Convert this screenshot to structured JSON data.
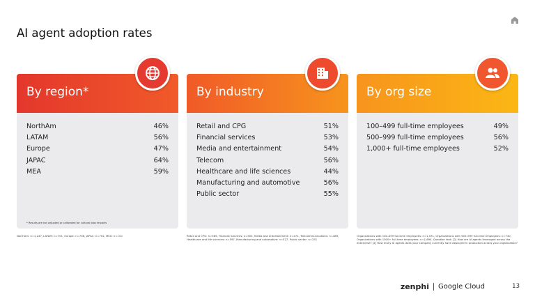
{
  "title": "AI agent adoption rates",
  "cards": [
    {
      "heading": "By region*",
      "rows": [
        {
          "label": "NorthAm",
          "value": "46%"
        },
        {
          "label": "LATAM",
          "value": "56%"
        },
        {
          "label": "Europe",
          "value": "47%"
        },
        {
          "label": "JAPAC",
          "value": "64%"
        },
        {
          "label": "MEA",
          "value": "59%"
        }
      ],
      "note": "* Results are not adjusted or calibrated for cultural bias impacts",
      "footnote": "NorthAm: n=1,247, LATAM: n=701, Europe: n=706, JAPAC: n=702, MEA: n=110"
    },
    {
      "heading": "By industry",
      "rows": [
        {
          "label": "Retail and CPG",
          "value": "51%"
        },
        {
          "label": "Financial services",
          "value": "53%"
        },
        {
          "label": "Media and entertainment",
          "value": "54%"
        },
        {
          "label": "Telecom",
          "value": "56%"
        },
        {
          "label": "Healthcare and life sciences",
          "value": "44%"
        },
        {
          "label": "Manufacturing and automotive",
          "value": "56%"
        },
        {
          "label": "Public sector",
          "value": "55%"
        }
      ],
      "footnote": "Retail and CPG: n=589, Financial services: n=504, Media and entertainment: n=471, Telecommunications: n=489, Healthcare and life sciences: n=597, Manufacturing and automotive: n=527, Public sector: n=251"
    },
    {
      "heading": "By org size",
      "rows": [
        {
          "label": "100–499 full-time employees",
          "value": "49%"
        },
        {
          "label": "500–999 full-time employees",
          "value": "56%"
        },
        {
          "label": "1,000+ full-time employees",
          "value": "52%"
        }
      ],
      "footnote": "Organizations with 100–499 full-time employees: n=1,031, Organizations with 500–999 full-time employees: n=740, Organizations with 1000+ full-time employees: n=1,694. Question text: [2] How are AI agents leveraged across the enterprise? [2] How many AI agents does your company currently have deployed in production across your organization?"
    }
  ],
  "footer": {
    "brand": "zenphi",
    "partner": "Google Cloud",
    "page": "13"
  }
}
